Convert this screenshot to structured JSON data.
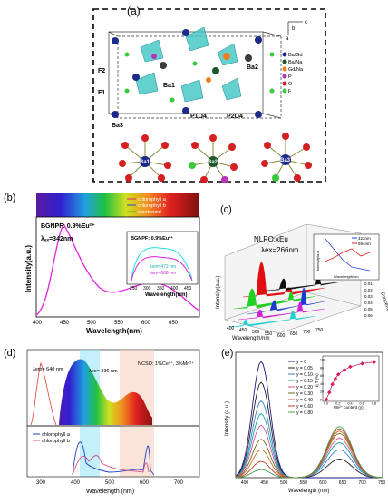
{
  "figure": {
    "a": {
      "label": "(a)",
      "atoms": [
        "Ba1",
        "Ba2",
        "Ba3",
        "F1",
        "F2",
        "P1O4",
        "P2O4"
      ],
      "axes": [
        "a",
        "b",
        "c"
      ],
      "legend": [
        "Ba/Gd",
        "Ba/Na",
        "Gd/Na",
        "P",
        "O",
        "F"
      ],
      "bottom_centers": [
        "Ba1",
        "Ba2",
        "Ba3"
      ],
      "o_labels": [
        "O1",
        "O2",
        "O3",
        "O4",
        "O5",
        "O6",
        "O7",
        "O8",
        "O9",
        "O10"
      ]
    },
    "b": {
      "label": "(b)",
      "legend": [
        "chlorophyll a",
        "chlorophyll b",
        "carotenoid"
      ],
      "sample": "BGNPF: 0.9%Eu²⁺",
      "excitation": "λₑₓ=342nm",
      "inset_title": "BGNPF: 0.9%Eu²⁺",
      "inset_lines": [
        "λem=472 nm",
        "λem=608 nm"
      ],
      "inset_xlabel": "Wavelength(nm)",
      "inset_xticks": [
        "250",
        "300",
        "350",
        "400",
        "450"
      ],
      "ylabel": "Intensity(a.u.)",
      "xlabel": "Wavelength(nm)",
      "xticks": [
        "400",
        "450",
        "500",
        "550",
        "600",
        "650"
      ]
    },
    "c": {
      "label": "(c)",
      "title": "NLPO:xEu",
      "excitation": "λex=266nm",
      "inset_legend": [
        "422nm",
        "594nm"
      ],
      "inset_ylabel": "Intensity/a.u.",
      "inset_xlabel": "Wavelength/nm",
      "ylabel": "Intensity(a.u.)",
      "xlabel": "Wavelength/nm",
      "zlabel": "Concentration",
      "xticks": [
        "400",
        "450",
        "500",
        "550",
        "600",
        "650",
        "700",
        "750"
      ],
      "conc_ticks": [
        "0.01",
        "0.02",
        "0.03",
        "0.04",
        "0.05",
        "0.06"
      ]
    },
    "d": {
      "label": "(d)",
      "em_label": "λem= 640 nm",
      "ex_label": "λex= 336 nm",
      "sample": "NCSO: 1%Ce³⁺, 3%Mn²⁺",
      "legend": [
        "chlorophyll a",
        "chlorophyll b"
      ],
      "xlabel": "Wavelength (nm)",
      "xticks": [
        "300",
        "400",
        "500",
        "600",
        "700"
      ]
    },
    "e": {
      "label": "(e)",
      "ylabel": "Intensity (a.u.)",
      "xlabel": "Wavelength (nm)",
      "xticks": [
        "400",
        "450",
        "500",
        "550",
        "600",
        "650",
        "700",
        "750"
      ],
      "legend": [
        "y = 0",
        "y = 0.05",
        "y = 0.10",
        "y = 0.15",
        "y = 0.20",
        "y = 0.30",
        "y = 0.40",
        "y = 0.60",
        "y = 0.80"
      ],
      "inset_ylabel": "η T (%)",
      "inset_xlabel": "Mn²⁺ content (y)",
      "inset_yticks": [
        "0",
        "20",
        "40",
        "60",
        "80",
        "100"
      ],
      "inset_xticks": [
        "0.0",
        "0.2",
        "0.4",
        "0.6",
        "0.8"
      ]
    }
  },
  "chart_data": [
    {
      "type": "line",
      "panel": "e",
      "xlabel": "Wavelength (nm)",
      "ylabel": "Intensity (a.u.)",
      "xlim": [
        375,
        750
      ],
      "colors": [
        "#1a1a80",
        "#202020",
        "#3b7fcc",
        "#1aa0a0",
        "#d94f9a",
        "#6e6e1a",
        "#d06a2a",
        "#c0392b",
        "#4aa04a"
      ],
      "series_peaks_blue": [
        1.0,
        0.82,
        0.66,
        0.55,
        0.45,
        0.33,
        0.24,
        0.14,
        0.07
      ],
      "series_peaks_red": [
        0.0,
        0.16,
        0.24,
        0.3,
        0.34,
        0.38,
        0.4,
        0.42,
        0.44
      ]
    },
    {
      "type": "scatter",
      "panel": "e-inset",
      "xlabel": "Mn²⁺ content (y)",
      "ylabel": "η T (%)",
      "x": [
        0.0,
        0.05,
        0.1,
        0.15,
        0.2,
        0.3,
        0.4,
        0.6,
        0.8
      ],
      "y": [
        0,
        18,
        38,
        52,
        63,
        74,
        82,
        90,
        94
      ],
      "xlim": [
        0,
        0.85
      ],
      "ylim": [
        0,
        100
      ]
    },
    {
      "type": "line",
      "panel": "c-inset",
      "series": [
        {
          "name": "422nm",
          "x": [
            0.01,
            0.02,
            0.03,
            0.04,
            0.05,
            0.06
          ],
          "values": [
            95,
            70,
            45,
            25,
            20,
            15
          ]
        },
        {
          "name": "594nm",
          "x": [
            0.01,
            0.02,
            0.03,
            0.04,
            0.05,
            0.06
          ],
          "values": [
            35,
            45,
            60,
            70,
            55,
            65
          ]
        }
      ]
    }
  ]
}
